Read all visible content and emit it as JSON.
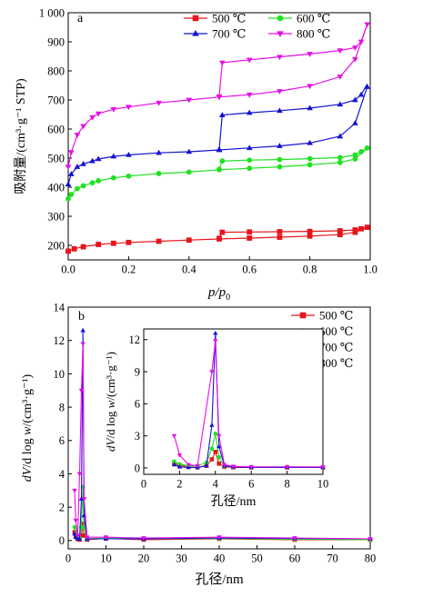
{
  "colors": {
    "s500": "#e8141c",
    "s600": "#1fe21f",
    "s700": "#1414d2",
    "s800": "#e60fe6",
    "axis": "#000000"
  },
  "markers": {
    "s500": "square",
    "s600": "circle",
    "s700": "triangle-up",
    "s800": "triangle-down"
  },
  "chart_data": [
    {
      "panel": "a",
      "type": "line",
      "xlabel_main": "p",
      "xlabel_sub": "0",
      "xlabel_sep": "/p",
      "ylabel": "吸附量/(cm³·g⁻¹ STP)",
      "xlim": [
        0,
        1.0
      ],
      "ylim": [
        150,
        1000
      ],
      "xticks": [
        0.0,
        0.2,
        0.4,
        0.6,
        0.8,
        1.0
      ],
      "xtick_labels": [
        "0.0",
        "0.2",
        "0.4",
        "0.6",
        "0.8",
        "1.0"
      ],
      "yticks": [
        200,
        300,
        400,
        500,
        600,
        700,
        800,
        900,
        1000
      ],
      "ytick_labels": [
        "200",
        "300",
        "400",
        "500",
        "600",
        "700",
        "800",
        "900",
        "1 000"
      ],
      "legend_position": "top-right",
      "legend_columns": 2,
      "series": [
        {
          "name": "500 ℃",
          "key": "s500",
          "adsorption": [
            [
              0.0,
              180
            ],
            [
              0.02,
              188
            ],
            [
              0.05,
              195
            ],
            [
              0.1,
              203
            ],
            [
              0.15,
              207
            ],
            [
              0.2,
              210
            ],
            [
              0.3,
              214
            ],
            [
              0.4,
              218
            ],
            [
              0.5,
              222
            ],
            [
              0.6,
              225
            ],
            [
              0.7,
              228
            ],
            [
              0.8,
              232
            ],
            [
              0.9,
              237
            ],
            [
              0.95,
              245
            ],
            [
              0.99,
              262
            ]
          ],
          "desorption": [
            [
              0.99,
              262
            ],
            [
              0.97,
              257
            ],
            [
              0.95,
              253
            ],
            [
              0.9,
              250
            ],
            [
              0.8,
              248
            ],
            [
              0.7,
              247
            ],
            [
              0.6,
              246
            ],
            [
              0.51,
              245
            ],
            [
              0.5,
              224
            ]
          ]
        },
        {
          "name": "600 ℃",
          "key": "s600",
          "adsorption": [
            [
              0.0,
              360
            ],
            [
              0.01,
              375
            ],
            [
              0.03,
              395
            ],
            [
              0.05,
              405
            ],
            [
              0.08,
              415
            ],
            [
              0.1,
              422
            ],
            [
              0.15,
              432
            ],
            [
              0.2,
              438
            ],
            [
              0.3,
              447
            ],
            [
              0.4,
              452
            ],
            [
              0.5,
              460
            ],
            [
              0.6,
              465
            ],
            [
              0.7,
              470
            ],
            [
              0.8,
              477
            ],
            [
              0.9,
              485
            ],
            [
              0.95,
              497
            ],
            [
              0.99,
              535
            ]
          ],
          "desorption": [
            [
              0.99,
              535
            ],
            [
              0.97,
              522
            ],
            [
              0.95,
              511
            ],
            [
              0.9,
              502
            ],
            [
              0.8,
              498
            ],
            [
              0.7,
              495
            ],
            [
              0.6,
              493
            ],
            [
              0.51,
              490
            ],
            [
              0.5,
              462
            ]
          ]
        },
        {
          "name": "700 ℃",
          "key": "s700",
          "adsorption": [
            [
              0.0,
              410
            ],
            [
              0.01,
              445
            ],
            [
              0.03,
              470
            ],
            [
              0.05,
              480
            ],
            [
              0.08,
              490
            ],
            [
              0.1,
              497
            ],
            [
              0.15,
              506
            ],
            [
              0.2,
              511
            ],
            [
              0.3,
              518
            ],
            [
              0.4,
              522
            ],
            [
              0.5,
              528
            ],
            [
              0.6,
              535
            ],
            [
              0.7,
              542
            ],
            [
              0.8,
              552
            ],
            [
              0.9,
              575
            ],
            [
              0.95,
              620
            ],
            [
              0.99,
              745
            ]
          ],
          "desorption": [
            [
              0.99,
              755
            ],
            [
              0.97,
              718
            ],
            [
              0.95,
              700
            ],
            [
              0.9,
              685
            ],
            [
              0.8,
              672
            ],
            [
              0.7,
              663
            ],
            [
              0.6,
              656
            ],
            [
              0.51,
              648
            ],
            [
              0.5,
              530
            ]
          ]
        },
        {
          "name": "800 ℃",
          "key": "s800",
          "adsorption": [
            [
              0.0,
              470
            ],
            [
              0.01,
              520
            ],
            [
              0.03,
              580
            ],
            [
              0.05,
              610
            ],
            [
              0.08,
              640
            ],
            [
              0.1,
              653
            ],
            [
              0.15,
              668
            ],
            [
              0.2,
              676
            ],
            [
              0.3,
              690
            ],
            [
              0.4,
              700
            ],
            [
              0.5,
              710
            ],
            [
              0.6,
              718
            ],
            [
              0.7,
              730
            ],
            [
              0.8,
              748
            ],
            [
              0.9,
              780
            ],
            [
              0.95,
              840
            ],
            [
              0.99,
              960
            ]
          ],
          "desorption": [
            [
              0.99,
              960
            ],
            [
              0.97,
              900
            ],
            [
              0.95,
              880
            ],
            [
              0.9,
              870
            ],
            [
              0.8,
              858
            ],
            [
              0.7,
              848
            ],
            [
              0.6,
              838
            ],
            [
              0.51,
              828
            ],
            [
              0.5,
              712
            ]
          ]
        }
      ]
    },
    {
      "panel": "b",
      "type": "line",
      "xlabel": "孔径/nm",
      "ylabel_parts": [
        "dV",
        "/d log ",
        "w",
        "/(cm³·g⁻¹)"
      ],
      "xlim": [
        0,
        80
      ],
      "ylim": [
        -0.5,
        14
      ],
      "xticks": [
        0,
        10,
        20,
        30,
        40,
        50,
        60,
        70,
        80
      ],
      "xtick_labels": [
        "0",
        "10",
        "20",
        "30",
        "40",
        "50",
        "60",
        "70",
        "80"
      ],
      "yticks": [
        0,
        2,
        4,
        6,
        8,
        10,
        12,
        14
      ],
      "ytick_labels": [
        "0",
        "2",
        "4",
        "6",
        "8",
        "10",
        "12",
        "14"
      ],
      "legend_position": "top-right",
      "legend_columns": 1,
      "series": [
        {
          "name": "500 ℃",
          "key": "s500",
          "points": [
            [
              1.7,
              0.5
            ],
            [
              2.0,
              0.25
            ],
            [
              2.5,
              0.1
            ],
            [
              3.0,
              0.05
            ],
            [
              3.5,
              0.3
            ],
            [
              3.9,
              1.0
            ],
            [
              4.2,
              0.3
            ],
            [
              5,
              0.05
            ],
            [
              10,
              0.12
            ],
            [
              20,
              0.05
            ],
            [
              40,
              0.1
            ],
            [
              60,
              0.05
            ],
            [
              80,
              0.05
            ]
          ]
        },
        {
          "name": "600 ℃",
          "key": "s600",
          "points": [
            [
              1.7,
              0.8
            ],
            [
              2.0,
              0.4
            ],
            [
              2.5,
              0.2
            ],
            [
              3.0,
              0.15
            ],
            [
              3.5,
              0.8
            ],
            [
              3.9,
              3.2
            ],
            [
              4.2,
              0.8
            ],
            [
              5,
              0.1
            ],
            [
              10,
              0.15
            ],
            [
              20,
              0.1
            ],
            [
              40,
              0.12
            ],
            [
              60,
              0.08
            ],
            [
              80,
              0.05
            ]
          ]
        },
        {
          "name": "700 ℃",
          "key": "s700",
          "points": [
            [
              1.7,
              0.4
            ],
            [
              2.0,
              0.2
            ],
            [
              2.5,
              0.1
            ],
            [
              3.0,
              0.1
            ],
            [
              3.5,
              2.5
            ],
            [
              3.9,
              12.6
            ],
            [
              4.2,
              1.5
            ],
            [
              5,
              0.1
            ],
            [
              10,
              0.1
            ],
            [
              20,
              0.1
            ],
            [
              40,
              0.15
            ],
            [
              60,
              0.12
            ],
            [
              80,
              0.1
            ]
          ]
        },
        {
          "name": "800 ℃",
          "key": "s800",
          "points": [
            [
              1.7,
              3.0
            ],
            [
              2.0,
              1.2
            ],
            [
              2.5,
              0.3
            ],
            [
              3.0,
              4.0
            ],
            [
              3.5,
              9.0
            ],
            [
              3.9,
              11.8
            ],
            [
              4.2,
              2.5
            ],
            [
              5,
              0.2
            ],
            [
              10,
              0.2
            ],
            [
              20,
              0.15
            ],
            [
              40,
              0.2
            ],
            [
              60,
              0.15
            ],
            [
              80,
              0.1
            ]
          ]
        }
      ],
      "inset": {
        "xlabel": "孔径/nm",
        "ylabel_parts": [
          "dV",
          "/d log ",
          "w",
          "/(cm³·g⁻¹)"
        ],
        "xlim": [
          0,
          10
        ],
        "ylim": [
          -0.6,
          13
        ],
        "xticks": [
          0,
          2,
          4,
          6,
          8,
          10
        ],
        "xtick_labels": [
          "0",
          "2",
          "4",
          "6",
          "8",
          "10"
        ],
        "yticks": [
          0,
          3,
          6,
          9,
          12
        ],
        "ytick_labels": [
          "0",
          "3",
          "6",
          "9",
          "12"
        ],
        "series": [
          {
            "key": "s500",
            "points": [
              [
                1.7,
                0.4
              ],
              [
                2.0,
                0.25
              ],
              [
                2.5,
                0.1
              ],
              [
                3.0,
                0.05
              ],
              [
                3.5,
                0.2
              ],
              [
                3.8,
                0.8
              ],
              [
                4.0,
                1.5
              ],
              [
                4.2,
                0.4
              ],
              [
                4.5,
                0.1
              ],
              [
                5,
                0.05
              ],
              [
                6,
                0.05
              ],
              [
                8,
                0.05
              ],
              [
                10,
                0.05
              ]
            ]
          },
          {
            "key": "s600",
            "points": [
              [
                1.7,
                0.6
              ],
              [
                2.0,
                0.35
              ],
              [
                2.5,
                0.2
              ],
              [
                3.0,
                0.2
              ],
              [
                3.5,
                0.5
              ],
              [
                3.8,
                1.8
              ],
              [
                4.0,
                3.2
              ],
              [
                4.2,
                1.0
              ],
              [
                4.5,
                0.15
              ],
              [
                5,
                0.1
              ],
              [
                6,
                0.1
              ],
              [
                8,
                0.1
              ],
              [
                10,
                0.08
              ]
            ]
          },
          {
            "key": "s700",
            "points": [
              [
                1.7,
                0.3
              ],
              [
                2.0,
                0.1
              ],
              [
                2.5,
                0.05
              ],
              [
                3.0,
                0.05
              ],
              [
                3.5,
                0.2
              ],
              [
                3.8,
                4.0
              ],
              [
                4.0,
                12.6
              ],
              [
                4.2,
                2.0
              ],
              [
                4.5,
                0.2
              ],
              [
                5,
                0.1
              ],
              [
                6,
                0.05
              ],
              [
                8,
                0.05
              ],
              [
                10,
                0.05
              ]
            ]
          },
          {
            "key": "s800",
            "points": [
              [
                1.7,
                3.0
              ],
              [
                2.0,
                1.2
              ],
              [
                2.5,
                0.3
              ],
              [
                3.0,
                0.2
              ],
              [
                3.8,
                9.0
              ],
              [
                4.0,
                11.9
              ],
              [
                4.2,
                3.0
              ],
              [
                4.5,
                0.3
              ],
              [
                5,
                0.15
              ],
              [
                6,
                0.1
              ],
              [
                8,
                0.1
              ],
              [
                10,
                0.1
              ]
            ]
          }
        ]
      }
    }
  ]
}
